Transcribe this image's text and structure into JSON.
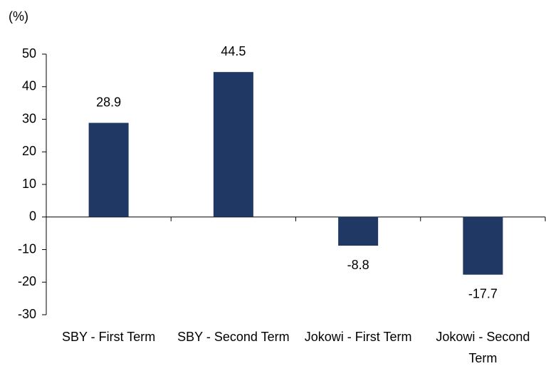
{
  "chart_data": {
    "type": "bar",
    "y_label": "(%)",
    "categories": [
      "SBY - First Term",
      "SBY - Second Term",
      "Jokowi - First Term",
      "Jokowi - Second Term"
    ],
    "values": [
      28.9,
      44.5,
      -8.8,
      -17.7
    ],
    "color": "#1f3864",
    "ylim": [
      -30,
      50
    ],
    "yticks": [
      -30,
      -20,
      -10,
      0,
      10,
      20,
      30,
      40,
      50
    ],
    "grid": false
  }
}
